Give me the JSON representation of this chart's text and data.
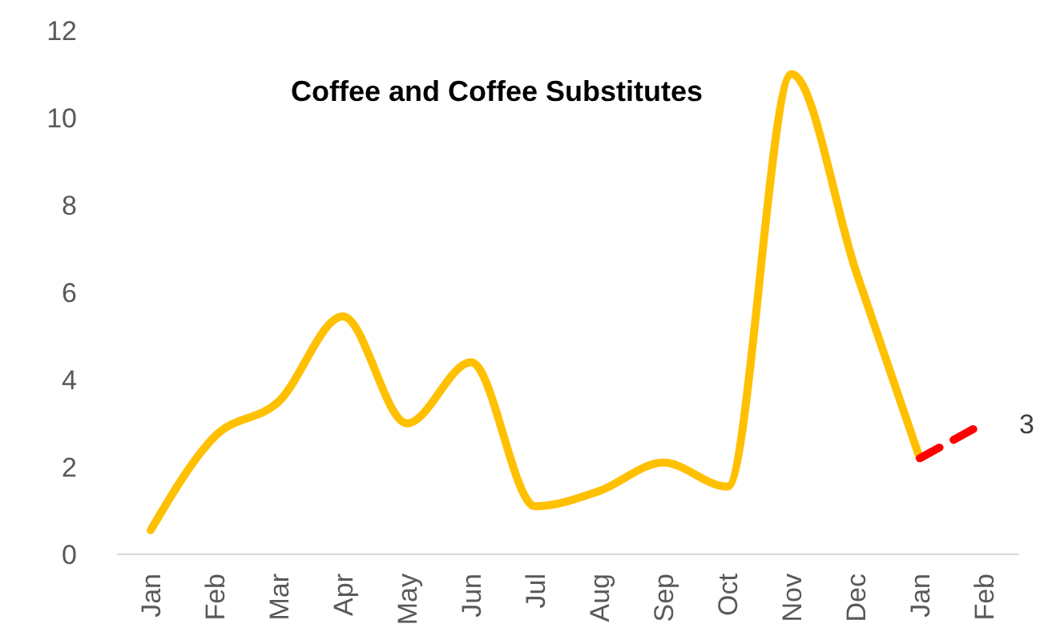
{
  "chart_data": {
    "type": "line",
    "title": "Coffee and Coffee Substitutes",
    "categories": [
      "Jan",
      "Feb",
      "Mar",
      "Apr",
      "May",
      "Jun",
      "Jul",
      "Aug",
      "Sep",
      "Oct",
      "Nov",
      "Dec",
      "Jan",
      "Feb"
    ],
    "series": [
      {
        "color": "#ffc000",
        "values": [
          0.55,
          2.7,
          3.5,
          5.45,
          3.0,
          4.4,
          1.1,
          1.45,
          2.1,
          1.55,
          11.0,
          6.5,
          2.2,
          null
        ],
        "line_style": "solid"
      },
      {
        "color": "#ff0000",
        "values": [
          null,
          null,
          null,
          null,
          null,
          null,
          null,
          null,
          null,
          null,
          null,
          null,
          2.2,
          3
        ],
        "line_style": "dashed",
        "value_labels": [
          null,
          null,
          null,
          null,
          null,
          null,
          null,
          null,
          null,
          null,
          null,
          null,
          null,
          "3"
        ]
      }
    ],
    "ylim": [
      0,
      12
    ],
    "yticks": [
      0,
      2,
      4,
      6,
      8,
      10,
      12
    ],
    "marker": "none"
  }
}
